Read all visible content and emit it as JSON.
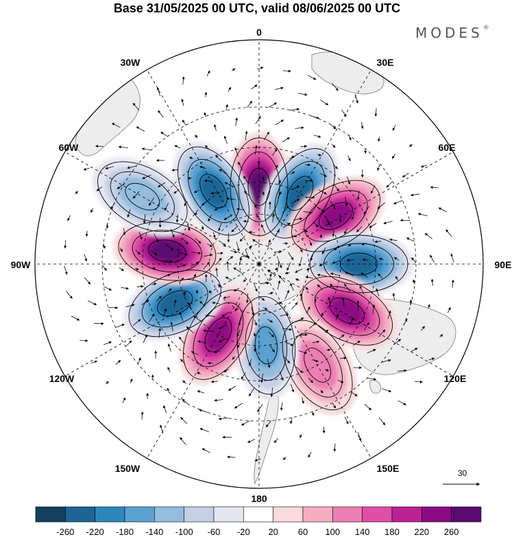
{
  "title": "Base 31/05/2025 00 UTC, valid 08/06/2025 00 UTC",
  "brand": "MODES",
  "brand_mark": "®",
  "projection": "south-polar-stereographic",
  "longitude_labels": [
    "0",
    "30E",
    "60E",
    "90E",
    "120E",
    "150E",
    "180",
    "150W",
    "120W",
    "90W",
    "60W",
    "30W"
  ],
  "reference_vector": {
    "label": "30"
  },
  "colorbar": {
    "ticks": [
      "-260",
      "-220",
      "-180",
      "-140",
      "-100",
      "-60",
      "-20",
      "20",
      "60",
      "100",
      "140",
      "180",
      "220",
      "260"
    ],
    "colors": [
      "#15405e",
      "#1d6595",
      "#2e86bd",
      "#5aa1d0",
      "#93bcdd",
      "#c5d0e6",
      "#e6e6f2",
      "#ffffff",
      "#fadadc",
      "#f4aec4",
      "#ec7eb2",
      "#df4fa6",
      "#bb2294",
      "#8c0b82",
      "#5a0a70"
    ]
  },
  "colors": {
    "land": "#ededed",
    "grid": "#000000",
    "coast": "#777777"
  },
  "anomaly_centers": [
    {
      "lon": 0,
      "lat": -52,
      "value": 260,
      "color": "#8c0b82"
    },
    {
      "lon": 30,
      "lat": -50,
      "value": -240,
      "color": "#15405e"
    },
    {
      "lon": 58,
      "lat": -46,
      "value": 220,
      "color": "#bb2294"
    },
    {
      "lon": 90,
      "lat": -42,
      "value": -240,
      "color": "#15405e"
    },
    {
      "lon": 118,
      "lat": -42,
      "value": 240,
      "color": "#8c0b82"
    },
    {
      "lon": 150,
      "lat": -35,
      "value": 100,
      "color": "#f4aec4"
    },
    {
      "lon": 175,
      "lat": -50,
      "value": -140,
      "color": "#5aa1d0"
    },
    {
      "lon": -150,
      "lat": -50,
      "value": 240,
      "color": "#8c0b82"
    },
    {
      "lon": -115,
      "lat": -45,
      "value": -240,
      "color": "#15405e"
    },
    {
      "lon": -82,
      "lat": -45,
      "value": 260,
      "color": "#5a0a70"
    },
    {
      "lon": -32,
      "lat": -48,
      "value": -240,
      "color": "#15405e"
    },
    {
      "lon": -60,
      "lat": -28,
      "value": -100,
      "color": "#93bcdd"
    }
  ]
}
